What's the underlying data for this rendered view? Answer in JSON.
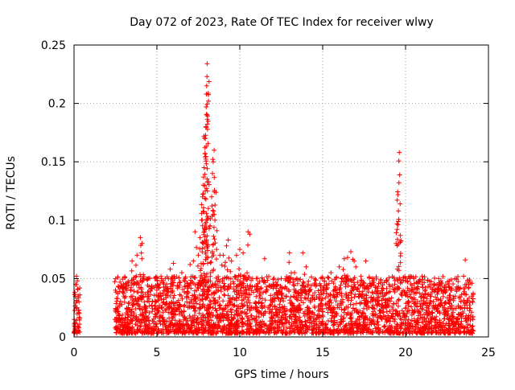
{
  "chart_data": {
    "type": "scatter",
    "title": "Day 072 of 2023, Rate Of TEC Index for receiver wlwy",
    "xlabel": "GPS time / hours",
    "ylabel": "ROTI / TECUs",
    "xlim": [
      0,
      25
    ],
    "ylim": [
      0,
      0.25
    ],
    "xticks": [
      "0",
      "5",
      "10",
      "15",
      "20",
      "25"
    ],
    "yticks": [
      "0",
      "0.05",
      "0.1",
      "0.15",
      "0.2",
      "0.25"
    ],
    "grid": true,
    "marker": "+",
    "color": "#ff0000",
    "coverage": [
      {
        "x_start": 0.0,
        "x_end": 0.35
      },
      {
        "x_start": 2.45,
        "x_end": 24.1
      }
    ],
    "series": [
      {
        "name": "ROTI",
        "points": [
          [
            0.05,
            0.038
          ],
          [
            0.1,
            0.045
          ],
          [
            0.15,
            0.052
          ],
          [
            0.2,
            0.048
          ],
          [
            0.25,
            0.035
          ],
          [
            0.3,
            0.03
          ],
          [
            2.5,
            0.04
          ],
          [
            3.0,
            0.035
          ],
          [
            3.5,
            0.065
          ],
          [
            3.8,
            0.07
          ],
          [
            4.0,
            0.085
          ],
          [
            4.1,
            0.08
          ],
          [
            4.5,
            0.05
          ],
          [
            5.0,
            0.042
          ],
          [
            5.5,
            0.05
          ],
          [
            5.8,
            0.058
          ],
          [
            6.0,
            0.063
          ],
          [
            6.5,
            0.055
          ],
          [
            6.7,
            0.05
          ],
          [
            7.0,
            0.062
          ],
          [
            7.2,
            0.065
          ],
          [
            7.3,
            0.09
          ],
          [
            7.5,
            0.07
          ],
          [
            7.6,
            0.085
          ],
          [
            7.7,
            0.1
          ],
          [
            7.75,
            0.12
          ],
          [
            7.8,
            0.13
          ],
          [
            7.85,
            0.145
          ],
          [
            7.9,
            0.162
          ],
          [
            7.92,
            0.17
          ],
          [
            7.95,
            0.18
          ],
          [
            7.97,
            0.197
          ],
          [
            7.98,
            0.208
          ],
          [
            8.0,
            0.215
          ],
          [
            8.02,
            0.223
          ],
          [
            8.03,
            0.234
          ],
          [
            8.05,
            0.125
          ],
          [
            8.1,
            0.11
          ],
          [
            8.2,
            0.095
          ],
          [
            8.3,
            0.12
          ],
          [
            8.35,
            0.14
          ],
          [
            8.4,
            0.15
          ],
          [
            8.45,
            0.16
          ],
          [
            8.5,
            0.1
          ],
          [
            8.6,
            0.075
          ],
          [
            8.8,
            0.07
          ],
          [
            9.0,
            0.07
          ],
          [
            9.2,
            0.078
          ],
          [
            9.3,
            0.083
          ],
          [
            9.5,
            0.065
          ],
          [
            9.8,
            0.07
          ],
          [
            10.0,
            0.075
          ],
          [
            10.2,
            0.072
          ],
          [
            10.5,
            0.09
          ],
          [
            10.6,
            0.088
          ],
          [
            11.0,
            0.05
          ],
          [
            11.5,
            0.067
          ],
          [
            12.0,
            0.045
          ],
          [
            12.5,
            0.05
          ],
          [
            13.0,
            0.072
          ],
          [
            13.3,
            0.055
          ],
          [
            13.8,
            0.072
          ],
          [
            14.0,
            0.06
          ],
          [
            14.5,
            0.045
          ],
          [
            15.0,
            0.05
          ],
          [
            15.5,
            0.055
          ],
          [
            16.0,
            0.06
          ],
          [
            16.3,
            0.067
          ],
          [
            16.5,
            0.068
          ],
          [
            16.7,
            0.073
          ],
          [
            16.9,
            0.065
          ],
          [
            17.0,
            0.06
          ],
          [
            17.3,
            0.045
          ],
          [
            17.6,
            0.065
          ],
          [
            18.0,
            0.05
          ],
          [
            18.5,
            0.048
          ],
          [
            19.0,
            0.045
          ],
          [
            19.5,
            0.058
          ],
          [
            19.55,
            0.096
          ],
          [
            19.57,
            0.108
          ],
          [
            19.6,
            0.132
          ],
          [
            19.62,
            0.158
          ],
          [
            20.0,
            0.048
          ],
          [
            20.5,
            0.05
          ],
          [
            21.0,
            0.045
          ],
          [
            21.5,
            0.035
          ],
          [
            22.0,
            0.05
          ],
          [
            22.3,
            0.04
          ],
          [
            22.7,
            0.032
          ],
          [
            23.0,
            0.035
          ],
          [
            23.3,
            0.042
          ],
          [
            23.5,
            0.052
          ],
          [
            23.6,
            0.066
          ],
          [
            23.8,
            0.045
          ],
          [
            24.0,
            0.035
          ]
        ],
        "dense_band": [
          {
            "x_start": 0.0,
            "x_end": 0.35,
            "y_low": 0.003,
            "y_high": 0.03
          },
          {
            "x_start": 2.45,
            "x_end": 24.1,
            "y_low": 0.003,
            "y_high": 0.04
          }
        ]
      }
    ]
  }
}
